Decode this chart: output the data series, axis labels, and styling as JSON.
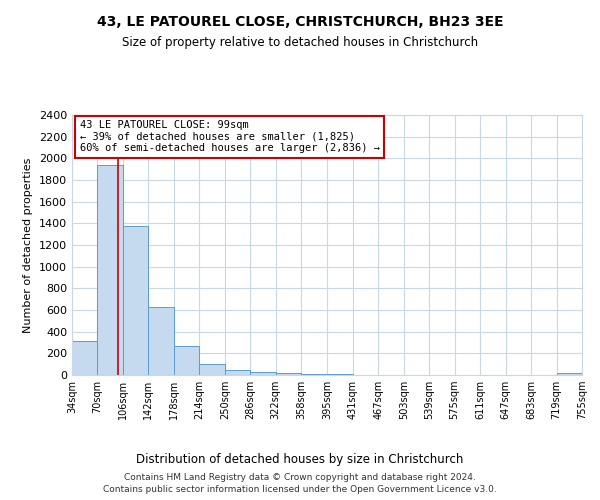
{
  "title": "43, LE PATOUREL CLOSE, CHRISTCHURCH, BH23 3EE",
  "subtitle": "Size of property relative to detached houses in Christchurch",
  "xlabel": "Distribution of detached houses by size in Christchurch",
  "ylabel": "Number of detached properties",
  "bar_edges": [
    34,
    70,
    106,
    142,
    178,
    214,
    250,
    286,
    322,
    358,
    395,
    431,
    467,
    503,
    539,
    575,
    611,
    647,
    683,
    719,
    755
  ],
  "bar_heights": [
    310,
    1940,
    1380,
    630,
    270,
    100,
    50,
    30,
    20,
    10,
    5,
    3,
    2,
    2,
    1,
    1,
    1,
    0,
    0,
    15
  ],
  "bar_color": "#c5d9ef",
  "bar_edge_color": "#5b9bd5",
  "vline_x": 99,
  "vline_color": "#cc0000",
  "annotation_text": "43 LE PATOUREL CLOSE: 99sqm\n← 39% of detached houses are smaller (1,825)\n60% of semi-detached houses are larger (2,836) →",
  "annotation_box_color": "#ffffff",
  "annotation_box_edge": "#cc0000",
  "ylim": [
    0,
    2400
  ],
  "yticks": [
    0,
    200,
    400,
    600,
    800,
    1000,
    1200,
    1400,
    1600,
    1800,
    2000,
    2200,
    2400
  ],
  "footer1": "Contains HM Land Registry data © Crown copyright and database right 2024.",
  "footer2": "Contains public sector information licensed under the Open Government Licence v3.0.",
  "bg_color": "#ffffff",
  "grid_color": "#c8d8e8",
  "tick_labels": [
    "34sqm",
    "70sqm",
    "106sqm",
    "142sqm",
    "178sqm",
    "214sqm",
    "250sqm",
    "286sqm",
    "322sqm",
    "358sqm",
    "395sqm",
    "431sqm",
    "467sqm",
    "503sqm",
    "539sqm",
    "575sqm",
    "611sqm",
    "647sqm",
    "683sqm",
    "719sqm",
    "755sqm"
  ]
}
